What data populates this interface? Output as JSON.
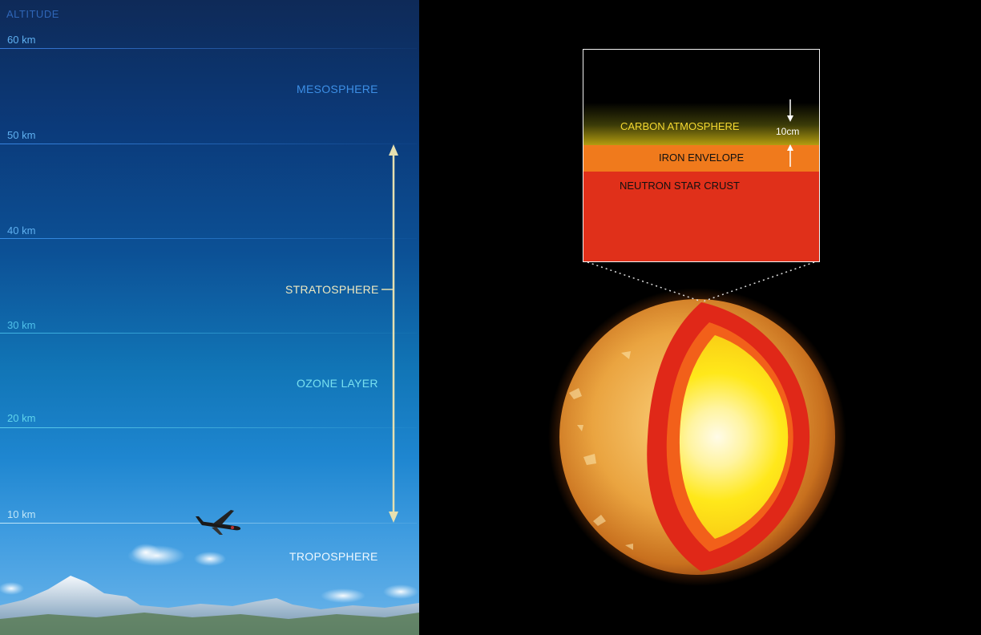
{
  "altitude": {
    "title": "ALTITUDE",
    "ticks": [
      "60 km",
      "50 km",
      "40 km",
      "30 km",
      "20 km",
      "10 km"
    ]
  },
  "atmosphere_layers": {
    "mesosphere": "MESOSPHERE",
    "stratosphere": "STRATOSPHERE",
    "ozone": "OZONE LAYER",
    "troposphere": "TROPOSPHERE"
  },
  "neutron_star": {
    "carbon_atmosphere": "CARBON ATMOSPHERE",
    "iron_envelope": "IRON ENVELOPE",
    "crust": "NEUTRON STAR CRUST",
    "thickness": "10cm"
  },
  "colors": {
    "crust": "#e0301a",
    "iron_envelope": "#f07a1c",
    "carbon_atmosphere_text": "#f4d830",
    "stratosphere_arrow": "#e6e0b0"
  }
}
